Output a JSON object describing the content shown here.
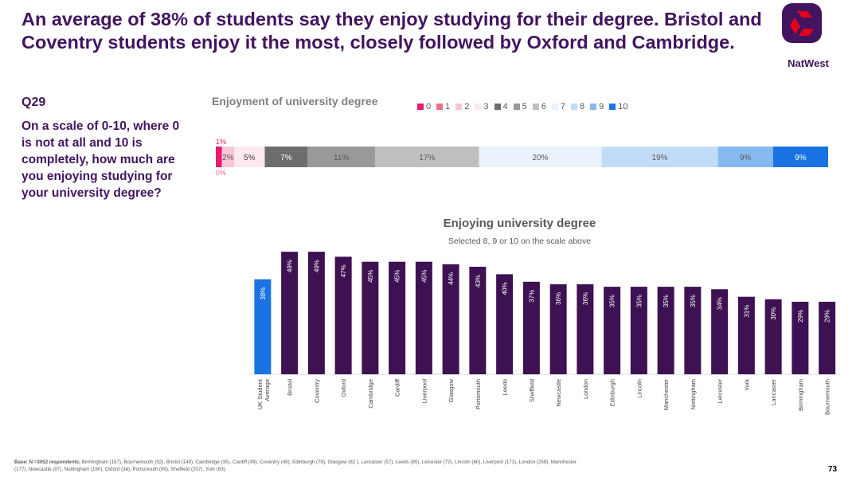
{
  "title": "An average of 38% of students say they enjoy studying for their degree. Bristol and Coventry students enjoy it the most, closely followed by Oxford and Cambridge.",
  "logo": {
    "text": "NatWest",
    "brand_color": "#42145f",
    "accent": "#e4001b"
  },
  "question": {
    "number": "Q29",
    "text": "On a scale of 0-10, where 0 is not at all and 10 is completely, how much are you enjoying studying for your university degree?"
  },
  "base_label": "Base: N =3052 respondents;",
  "base_text": " Birmingham (157),  Bournemouth (52), Bristol (148), Cambridge (35), Cardiff (49), Coventry (48),  Edinburgh (79), Glasgow (82 ), Lancaster (57), Leeds (85), Leicester (72), Lincoln (60), Liverpool (171), London (258), Manchester (177), Newcastle (97), Nottingham (160), Oxford (34), Portsmouth (89), Sheffield (207), York (63).",
  "page_number": "73",
  "chart_data": [
    {
      "type": "bar",
      "stacked": true,
      "orientation": "horizontal",
      "title": "Enjoyment of university degree",
      "legend_position": "top-right",
      "series": [
        {
          "name": "0",
          "value": 1,
          "label": "1%",
          "color": "#e8196b"
        },
        {
          "name": "1",
          "value": 0,
          "label": "0%",
          "color": "#ef6f86"
        },
        {
          "name": "2",
          "value": 2,
          "label": "2%",
          "color": "#f8c6d9"
        },
        {
          "name": "3",
          "value": 5,
          "label": "5%",
          "color": "#fde8ef"
        },
        {
          "name": "4",
          "value": 7,
          "label": "7%",
          "color": "#6d6d6d"
        },
        {
          "name": "5",
          "value": 11,
          "label": "11%",
          "color": "#999999"
        },
        {
          "name": "6",
          "value": 17,
          "label": "17%",
          "color": "#bfbfbf"
        },
        {
          "name": "7",
          "value": 20,
          "label": "20%",
          "color": "#eaf2fc"
        },
        {
          "name": "8",
          "value": 19,
          "label": "19%",
          "color": "#c2dcf7"
        },
        {
          "name": "9",
          "value": 9,
          "label": "9%",
          "color": "#86b9f0"
        },
        {
          "name": "10",
          "value": 9,
          "label": "9%",
          "color": "#1a73e3"
        }
      ]
    },
    {
      "type": "bar",
      "title": "Enjoying university degree",
      "subtitle": "Selected 8, 9 or 10 on the scale above",
      "ylim": [
        0,
        50
      ],
      "categories": [
        "UK Student Average",
        "Bristol",
        "Coventry",
        "Oxford",
        "Cambridge",
        "Cardiff",
        "Liverpool",
        "Glasgow",
        "Portsmouth",
        "Leeds",
        "Sheffield",
        "Newcastle",
        "London",
        "Edinburgh",
        "Lincoln",
        "Manchester",
        "Nottingham",
        "Leicester",
        "York",
        "Lancaster",
        "Birmingham",
        "Bournemouth"
      ],
      "values": [
        38,
        49,
        49,
        47,
        45,
        45,
        45,
        44,
        43,
        40,
        37,
        36,
        36,
        35,
        35,
        35,
        35,
        34,
        31,
        30,
        29,
        29
      ],
      "colors": {
        "average": "#1a73e3",
        "cities": "#3d1152"
      }
    }
  ]
}
